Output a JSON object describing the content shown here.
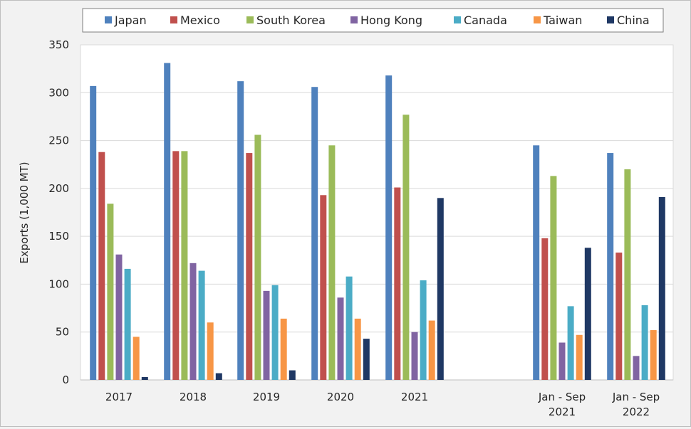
{
  "chart_data": {
    "type": "bar",
    "ylabel": "Exports (1,000 MT)",
    "ylim": [
      0,
      350
    ],
    "yticks": [
      0,
      50,
      100,
      150,
      200,
      250,
      300,
      350
    ],
    "grid": true,
    "legend_position": "top",
    "categories": [
      [
        "2017"
      ],
      [
        "2018"
      ],
      [
        "2019"
      ],
      [
        "2020"
      ],
      [
        "2021"
      ],
      [
        "Jan - Sep",
        "2021"
      ],
      [
        "Jan - Sep",
        "2022"
      ]
    ],
    "series": [
      {
        "name": "Japan",
        "color": "#4f81bd",
        "values": [
          307,
          331,
          312,
          306,
          318,
          245,
          237
        ]
      },
      {
        "name": "Mexico",
        "color": "#c0504d",
        "values": [
          238,
          239,
          237,
          193,
          201,
          148,
          133
        ]
      },
      {
        "name": "South Korea",
        "color": "#9bbb59",
        "values": [
          184,
          239,
          256,
          245,
          277,
          213,
          220
        ]
      },
      {
        "name": "Hong Kong",
        "color": "#8064a2",
        "values": [
          131,
          122,
          93,
          86,
          50,
          39,
          25
        ]
      },
      {
        "name": "Canada",
        "color": "#4bacc6",
        "values": [
          116,
          114,
          99,
          108,
          104,
          77,
          78
        ]
      },
      {
        "name": "Taiwan",
        "color": "#f79646",
        "values": [
          45,
          60,
          64,
          64,
          62,
          47,
          52
        ]
      },
      {
        "name": "China",
        "color": "#1f3864",
        "values": [
          3,
          7,
          10,
          43,
          190,
          138,
          191
        ]
      }
    ]
  }
}
